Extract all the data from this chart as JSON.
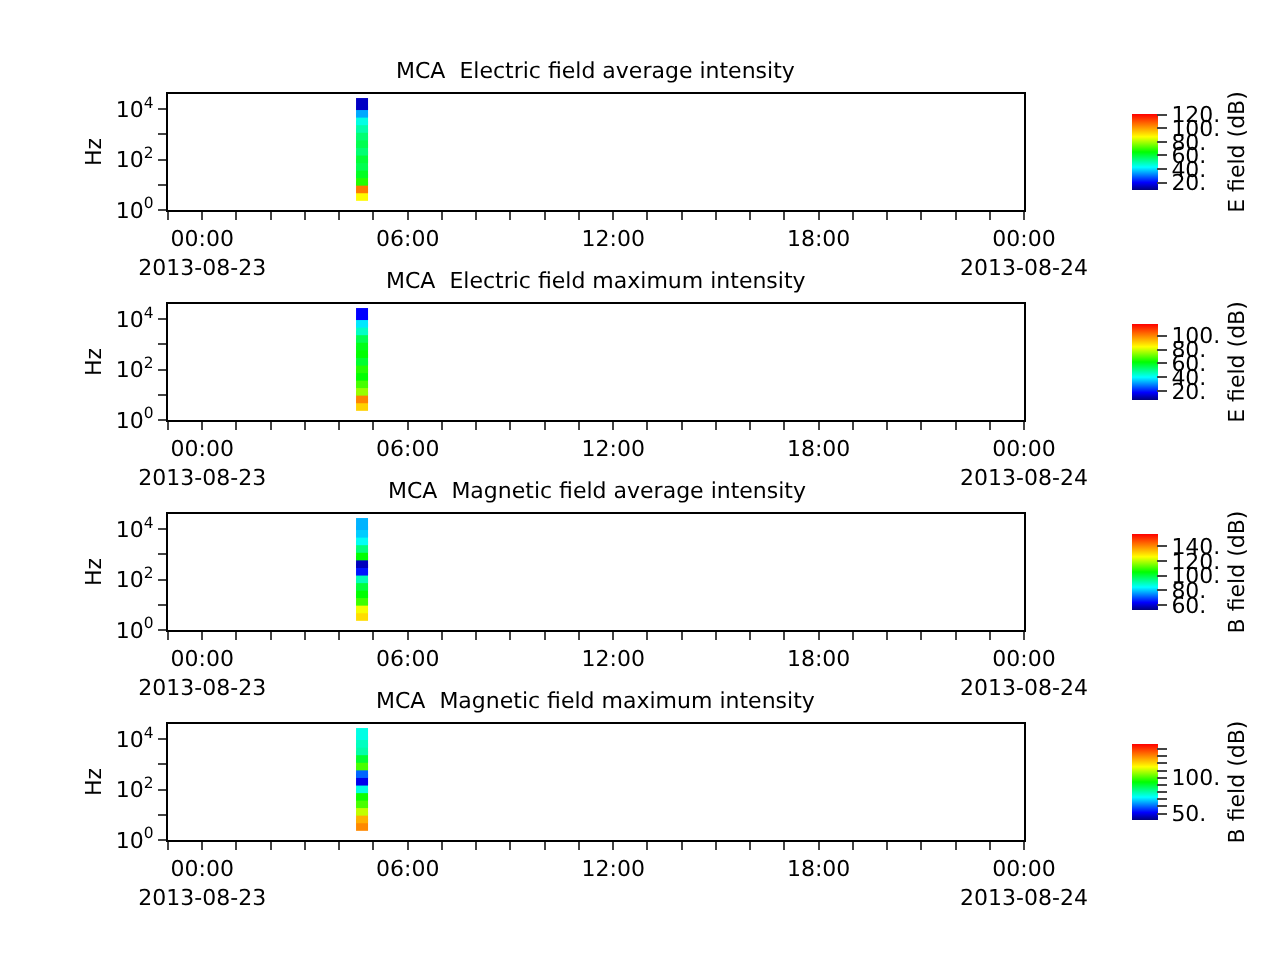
{
  "chart_data": [
    {
      "type": "scatter",
      "title": "MCA  Electric field average intensity",
      "ylabel": "Hz",
      "clabel": "E field (dB)",
      "log": "y",
      "marker": "square",
      "x": [
        "2013-08-23T04:40",
        "2013-08-23T04:40",
        "2013-08-23T04:40",
        "2013-08-23T04:40",
        "2013-08-23T04:40",
        "2013-08-23T04:40",
        "2013-08-23T04:40",
        "2013-08-23T04:40",
        "2013-08-23T04:40",
        "2013-08-23T04:40",
        "2013-08-23T04:40",
        "2013-08-23T04:40",
        "2013-08-23T04:40"
      ],
      "values": [
        4,
        8,
        16,
        32,
        63,
        125,
        250,
        500,
        1000,
        2000,
        4000,
        8000,
        16000
      ],
      "cvalues": [
        88,
        105,
        68,
        62,
        58,
        60,
        55,
        58,
        55,
        50,
        45,
        35,
        15
      ],
      "clim": [
        9,
        121
      ],
      "cticks": [
        {
          "value": 20,
          "label": "20."
        },
        {
          "value": 40,
          "label": "40."
        },
        {
          "value": 60,
          "label": "60."
        },
        {
          "value": 80,
          "label": "80."
        },
        {
          "value": 100,
          "label": "100."
        },
        {
          "value": 120,
          "label": "120."
        }
      ],
      "xlim": [
        "2013-08-22T23:00",
        "2013-08-24T00:00"
      ],
      "xticks": [
        {
          "value": "2013-08-23T00:00",
          "label": "00:00\n2013-08-23"
        },
        {
          "value": "2013-08-23T06:00",
          "label": "06:00"
        },
        {
          "value": "2013-08-23T12:00",
          "label": "12:00"
        },
        {
          "value": "2013-08-23T18:00",
          "label": "18:00"
        },
        {
          "value": "2013-08-24T00:00",
          "label": "00:00\n2013-08-24"
        },
        {
          "value": "2013-08-22T23:00",
          "label": null
        },
        {
          "value": "2013-08-23T01:00",
          "label": null
        },
        {
          "value": "2013-08-23T02:00",
          "label": null
        },
        {
          "value": "2013-08-23T03:00",
          "label": null
        },
        {
          "value": "2013-08-23T04:00",
          "label": null
        },
        {
          "value": "2013-08-23T05:00",
          "label": null
        },
        {
          "value": "2013-08-23T07:00",
          "label": null
        },
        {
          "value": "2013-08-23T08:00",
          "label": null
        },
        {
          "value": "2013-08-23T09:00",
          "label": null
        },
        {
          "value": "2013-08-23T10:00",
          "label": null
        },
        {
          "value": "2013-08-23T11:00",
          "label": null
        },
        {
          "value": "2013-08-23T13:00",
          "label": null
        },
        {
          "value": "2013-08-23T14:00",
          "label": null
        },
        {
          "value": "2013-08-23T15:00",
          "label": null
        },
        {
          "value": "2013-08-23T16:00",
          "label": null
        },
        {
          "value": "2013-08-23T17:00",
          "label": null
        },
        {
          "value": "2013-08-23T19:00",
          "label": null
        },
        {
          "value": "2013-08-23T20:00",
          "label": null
        },
        {
          "value": "2013-08-23T21:00",
          "label": null
        },
        {
          "value": "2013-08-23T22:00",
          "label": null
        },
        {
          "value": "2013-08-23T23:00",
          "label": null
        }
      ],
      "ylim": [
        1,
        40000
      ],
      "yticks": [
        {
          "value": 1,
          "label": "10$^{0}$"
        },
        {
          "value": 10,
          "label": null
        },
        {
          "value": 100,
          "label": "10$^{2}$"
        },
        {
          "value": 1000,
          "label": null
        },
        {
          "value": 10000,
          "label": "10$^{4}$"
        }
      ]
    },
    {
      "type": "scatter",
      "title": "MCA  Electric field maximum intensity",
      "ylabel": "Hz",
      "clabel": "E field (dB)",
      "log": "y",
      "marker": "square",
      "x": [
        "2013-08-23T04:40",
        "2013-08-23T04:40",
        "2013-08-23T04:40",
        "2013-08-23T04:40",
        "2013-08-23T04:40",
        "2013-08-23T04:40",
        "2013-08-23T04:40",
        "2013-08-23T04:40",
        "2013-08-23T04:40",
        "2013-08-23T04:40",
        "2013-08-23T04:40",
        "2013-08-23T04:40",
        "2013-08-23T04:40"
      ],
      "values": [
        4,
        8,
        16,
        32,
        63,
        125,
        250,
        500,
        1000,
        2000,
        4000,
        8000,
        16000
      ],
      "cvalues": [
        90,
        100,
        75,
        68,
        62,
        65,
        58,
        62,
        60,
        55,
        45,
        38,
        18
      ],
      "clim": [
        7,
        117
      ],
      "cticks": [
        {
          "value": 20,
          "label": "20."
        },
        {
          "value": 40,
          "label": "40."
        },
        {
          "value": 60,
          "label": "60."
        },
        {
          "value": 80,
          "label": "80."
        },
        {
          "value": 100,
          "label": "100."
        }
      ],
      "xlim": [
        "2013-08-22T23:00",
        "2013-08-24T00:00"
      ],
      "xticks": [
        {
          "value": "2013-08-23T00:00",
          "label": "00:00\n2013-08-23"
        },
        {
          "value": "2013-08-23T06:00",
          "label": "06:00"
        },
        {
          "value": "2013-08-23T12:00",
          "label": "12:00"
        },
        {
          "value": "2013-08-23T18:00",
          "label": "18:00"
        },
        {
          "value": "2013-08-24T00:00",
          "label": "00:00\n2013-08-24"
        },
        {
          "value": "2013-08-22T23:00",
          "label": null
        },
        {
          "value": "2013-08-23T01:00",
          "label": null
        },
        {
          "value": "2013-08-23T02:00",
          "label": null
        },
        {
          "value": "2013-08-23T03:00",
          "label": null
        },
        {
          "value": "2013-08-23T04:00",
          "label": null
        },
        {
          "value": "2013-08-23T05:00",
          "label": null
        },
        {
          "value": "2013-08-23T07:00",
          "label": null
        },
        {
          "value": "2013-08-23T08:00",
          "label": null
        },
        {
          "value": "2013-08-23T09:00",
          "label": null
        },
        {
          "value": "2013-08-23T10:00",
          "label": null
        },
        {
          "value": "2013-08-23T11:00",
          "label": null
        },
        {
          "value": "2013-08-23T13:00",
          "label": null
        },
        {
          "value": "2013-08-23T14:00",
          "label": null
        },
        {
          "value": "2013-08-23T15:00",
          "label": null
        },
        {
          "value": "2013-08-23T16:00",
          "label": null
        },
        {
          "value": "2013-08-23T17:00",
          "label": null
        },
        {
          "value": "2013-08-23T19:00",
          "label": null
        },
        {
          "value": "2013-08-23T20:00",
          "label": null
        },
        {
          "value": "2013-08-23T21:00",
          "label": null
        },
        {
          "value": "2013-08-23T22:00",
          "label": null
        },
        {
          "value": "2013-08-23T23:00",
          "label": null
        }
      ],
      "ylim": [
        1,
        40000
      ],
      "yticks": [
        {
          "value": 1,
          "label": "10$^{0}$"
        },
        {
          "value": 10,
          "label": null
        },
        {
          "value": 100,
          "label": "10$^{2}$"
        },
        {
          "value": 1000,
          "label": null
        },
        {
          "value": 10000,
          "label": "10$^{4}$"
        }
      ]
    },
    {
      "type": "scatter",
      "title": "MCA  Magnetic field average intensity",
      "ylabel": "Hz",
      "clabel": "B field (dB)",
      "log": "y",
      "marker": "square",
      "x": [
        "2013-08-23T04:40",
        "2013-08-23T04:40",
        "2013-08-23T04:40",
        "2013-08-23T04:40",
        "2013-08-23T04:40",
        "2013-08-23T04:40",
        "2013-08-23T04:40",
        "2013-08-23T04:40",
        "2013-08-23T04:40",
        "2013-08-23T04:40",
        "2013-08-23T04:40",
        "2013-08-23T04:40",
        "2013-08-23T04:40"
      ],
      "values": [
        4,
        8,
        16,
        32,
        63,
        125,
        250,
        500,
        1000,
        2000,
        4000,
        8000,
        16000
      ],
      "cvalues": [
        130,
        125,
        110,
        105,
        100,
        90,
        65,
        58,
        105,
        95,
        85,
        80,
        78
      ],
      "clim": [
        53,
        157
      ],
      "cticks": [
        {
          "value": 60,
          "label": "60."
        },
        {
          "value": 80,
          "label": "80."
        },
        {
          "value": 100,
          "label": "100."
        },
        {
          "value": 120,
          "label": "120."
        },
        {
          "value": 140,
          "label": "140."
        }
      ],
      "xlim": [
        "2013-08-22T23:00",
        "2013-08-24T00:00"
      ],
      "xticks": [
        {
          "value": "2013-08-23T00:00",
          "label": "00:00\n2013-08-23"
        },
        {
          "value": "2013-08-23T06:00",
          "label": "06:00"
        },
        {
          "value": "2013-08-23T12:00",
          "label": "12:00"
        },
        {
          "value": "2013-08-23T18:00",
          "label": "18:00"
        },
        {
          "value": "2013-08-24T00:00",
          "label": "00:00\n2013-08-24"
        },
        {
          "value": "2013-08-22T23:00",
          "label": null
        },
        {
          "value": "2013-08-23T01:00",
          "label": null
        },
        {
          "value": "2013-08-23T02:00",
          "label": null
        },
        {
          "value": "2013-08-23T03:00",
          "label": null
        },
        {
          "value": "2013-08-23T04:00",
          "label": null
        },
        {
          "value": "2013-08-23T05:00",
          "label": null
        },
        {
          "value": "2013-08-23T07:00",
          "label": null
        },
        {
          "value": "2013-08-23T08:00",
          "label": null
        },
        {
          "value": "2013-08-23T09:00",
          "label": null
        },
        {
          "value": "2013-08-23T10:00",
          "label": null
        },
        {
          "value": "2013-08-23T11:00",
          "label": null
        },
        {
          "value": "2013-08-23T13:00",
          "label": null
        },
        {
          "value": "2013-08-23T14:00",
          "label": null
        },
        {
          "value": "2013-08-23T15:00",
          "label": null
        },
        {
          "value": "2013-08-23T16:00",
          "label": null
        },
        {
          "value": "2013-08-23T17:00",
          "label": null
        },
        {
          "value": "2013-08-23T19:00",
          "label": null
        },
        {
          "value": "2013-08-23T20:00",
          "label": null
        },
        {
          "value": "2013-08-23T21:00",
          "label": null
        },
        {
          "value": "2013-08-23T22:00",
          "label": null
        },
        {
          "value": "2013-08-23T23:00",
          "label": null
        }
      ],
      "ylim": [
        1,
        40000
      ],
      "yticks": [
        {
          "value": 1,
          "label": "10$^{0}$"
        },
        {
          "value": 10,
          "label": null
        },
        {
          "value": 100,
          "label": "10$^{2}$"
        },
        {
          "value": 1000,
          "label": null
        },
        {
          "value": 10000,
          "label": "10$^{4}$"
        }
      ]
    },
    {
      "type": "scatter",
      "title": "MCA  Magnetic field maximum intensity",
      "ylabel": "Hz",
      "clabel": "B field (dB)",
      "log": "y",
      "marker": "square",
      "x": [
        "2013-08-23T04:40",
        "2013-08-23T04:40",
        "2013-08-23T04:40",
        "2013-08-23T04:40",
        "2013-08-23T04:40",
        "2013-08-23T04:40",
        "2013-08-23T04:40",
        "2013-08-23T04:40",
        "2013-08-23T04:40",
        "2013-08-23T04:40",
        "2013-08-23T04:40",
        "2013-08-23T04:40",
        "2013-08-23T04:40"
      ],
      "values": [
        4,
        8,
        16,
        32,
        63,
        125,
        250,
        500,
        1000,
        2000,
        4000,
        8000,
        16000
      ],
      "cvalues": [
        130,
        125,
        110,
        100,
        95,
        75,
        50,
        60,
        100,
        90,
        80,
        78,
        75
      ],
      "clim": [
        41,
        147
      ],
      "cticks": [
        {
          "value": 50,
          "label": "50."
        },
        {
          "value": 60,
          "label": null
        },
        {
          "value": 70,
          "label": null
        },
        {
          "value": 80,
          "label": null
        },
        {
          "value": 90,
          "label": null
        },
        {
          "value": 100,
          "label": "100."
        },
        {
          "value": 110,
          "label": null
        },
        {
          "value": 120,
          "label": null
        },
        {
          "value": 130,
          "label": null
        },
        {
          "value": 140,
          "label": null
        }
      ],
      "xlim": [
        "2013-08-22T23:00",
        "2013-08-24T00:00"
      ],
      "xticks": [
        {
          "value": "2013-08-23T00:00",
          "label": "00:00\n2013-08-23"
        },
        {
          "value": "2013-08-23T06:00",
          "label": "06:00"
        },
        {
          "value": "2013-08-23T12:00",
          "label": "12:00"
        },
        {
          "value": "2013-08-23T18:00",
          "label": "18:00"
        },
        {
          "value": "2013-08-24T00:00",
          "label": "00:00\n2013-08-24"
        },
        {
          "value": "2013-08-22T23:00",
          "label": null
        },
        {
          "value": "2013-08-23T01:00",
          "label": null
        },
        {
          "value": "2013-08-23T02:00",
          "label": null
        },
        {
          "value": "2013-08-23T03:00",
          "label": null
        },
        {
          "value": "2013-08-23T04:00",
          "label": null
        },
        {
          "value": "2013-08-23T05:00",
          "label": null
        },
        {
          "value": "2013-08-23T07:00",
          "label": null
        },
        {
          "value": "2013-08-23T08:00",
          "label": null
        },
        {
          "value": "2013-08-23T09:00",
          "label": null
        },
        {
          "value": "2013-08-23T10:00",
          "label": null
        },
        {
          "value": "2013-08-23T11:00",
          "label": null
        },
        {
          "value": "2013-08-23T13:00",
          "label": null
        },
        {
          "value": "2013-08-23T14:00",
          "label": null
        },
        {
          "value": "2013-08-23T15:00",
          "label": null
        },
        {
          "value": "2013-08-23T16:00",
          "label": null
        },
        {
          "value": "2013-08-23T17:00",
          "label": null
        },
        {
          "value": "2013-08-23T19:00",
          "label": null
        },
        {
          "value": "2013-08-23T20:00",
          "label": null
        },
        {
          "value": "2013-08-23T21:00",
          "label": null
        },
        {
          "value": "2013-08-23T22:00",
          "label": null
        },
        {
          "value": "2013-08-23T23:00",
          "label": null
        }
      ],
      "ylim": [
        1,
        40000
      ],
      "yticks": [
        {
          "value": 1,
          "label": "10$^{0}$"
        },
        {
          "value": 10,
          "label": null
        },
        {
          "value": 100,
          "label": "10$^{2}$"
        },
        {
          "value": 1000,
          "label": null
        },
        {
          "value": 10000,
          "label": "10$^{4}$"
        }
      ]
    }
  ]
}
